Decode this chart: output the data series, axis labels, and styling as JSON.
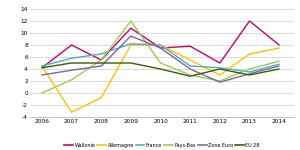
{
  "years": [
    2006,
    2007,
    2008,
    2009,
    2010,
    2011,
    2012,
    2013,
    2014
  ],
  "series": {
    "Wallonie": [
      4.2,
      8.0,
      5.5,
      10.8,
      7.5,
      7.8,
      5.0,
      12.0,
      8.0
    ],
    "Allemagne": [
      4.5,
      -3.2,
      -0.8,
      8.0,
      8.0,
      5.5,
      3.0,
      6.5,
      7.5
    ],
    "France": [
      4.5,
      5.8,
      6.5,
      8.2,
      8.0,
      4.5,
      4.2,
      3.5,
      4.8
    ],
    "Pays-Bas": [
      0.0,
      2.2,
      5.5,
      12.0,
      5.0,
      3.0,
      2.0,
      4.0,
      5.3
    ],
    "Zone Euro": [
      3.0,
      3.8,
      4.5,
      9.5,
      7.5,
      4.0,
      1.8,
      3.2,
      4.5
    ],
    "EU 28": [
      4.2,
      5.0,
      5.0,
      5.0,
      4.0,
      2.8,
      4.0,
      3.0,
      4.0
    ]
  },
  "colors": {
    "Wallonie": "#cc0066",
    "Allemagne": "#ffc000",
    "France": "#4bacc6",
    "Pays-Bas": "#92d050",
    "Zone Euro": "#8064a2",
    "EU 28": "#3d5c00"
  },
  "ylim": [
    -4,
    14
  ],
  "yticks": [
    -4,
    -2,
    0,
    2,
    4,
    6,
    8,
    10,
    12,
    14
  ],
  "background_color": "#ffffff"
}
